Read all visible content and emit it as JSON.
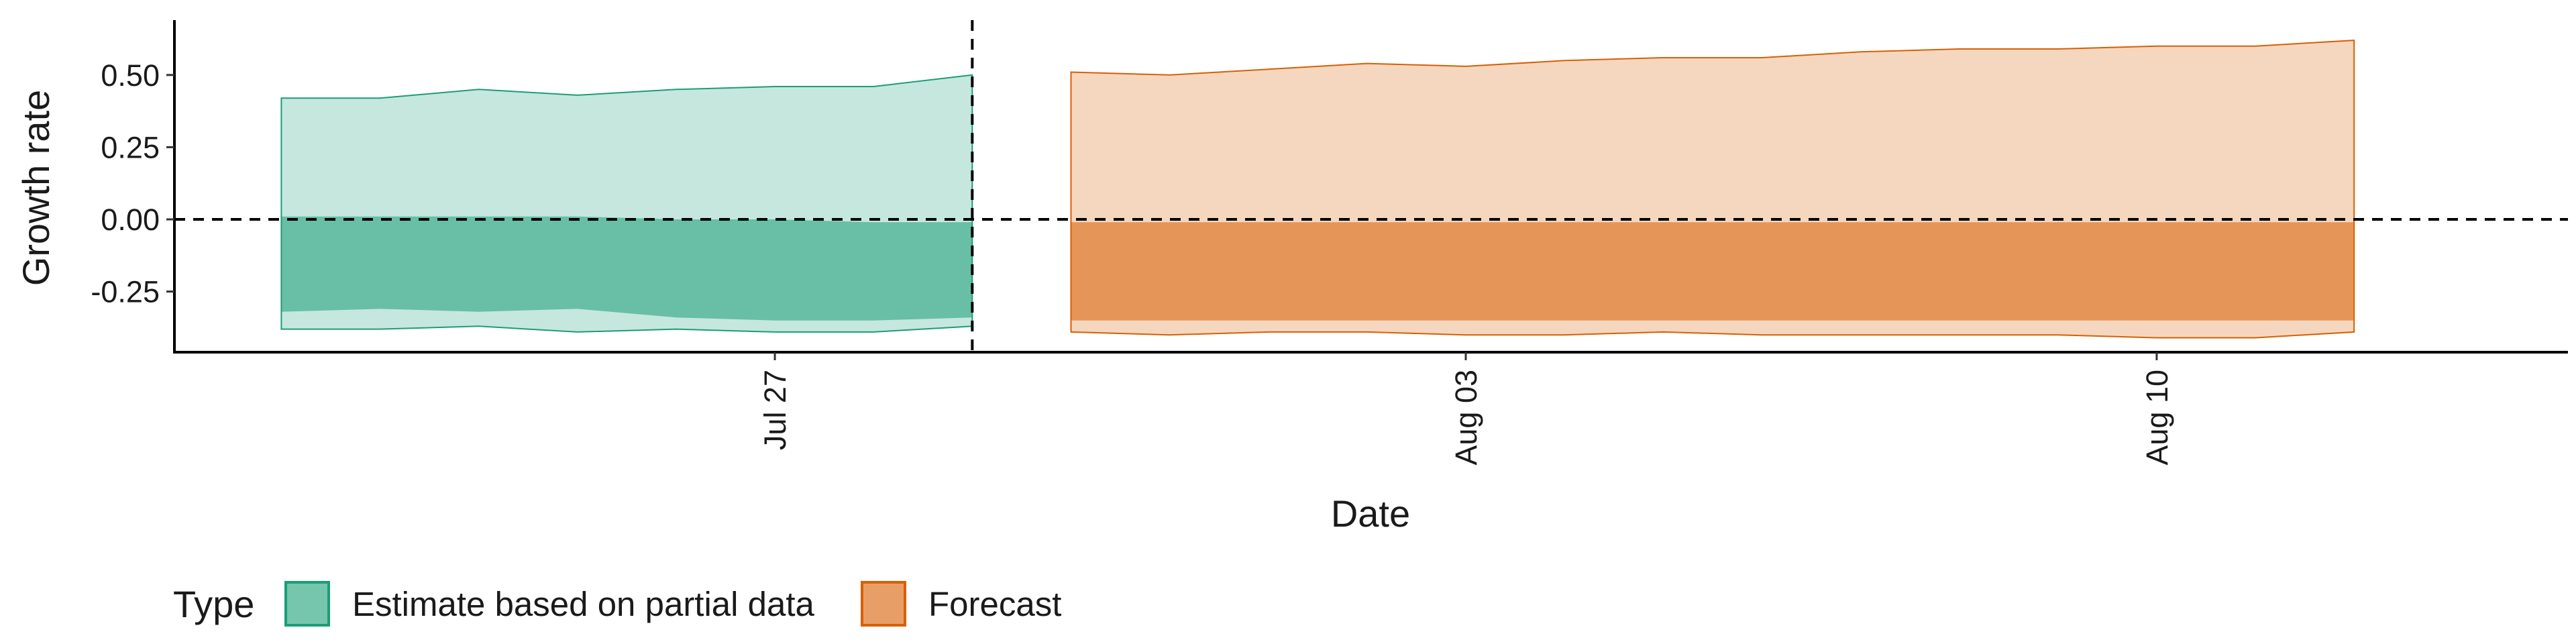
{
  "chart_data": {
    "type": "area",
    "xlabel": "Date",
    "ylabel": "Growth rate",
    "x_ticks": [
      {
        "date": "2020-07-27",
        "label": "Jul 27"
      },
      {
        "date": "2020-08-03",
        "label": "Aug 03"
      },
      {
        "date": "2020-08-10",
        "label": "Aug 10"
      }
    ],
    "y_ticks": [
      {
        "value": 0.5,
        "label": "0.50"
      },
      {
        "value": 0.25,
        "label": "0.25"
      },
      {
        "value": 0.0,
        "label": "0.00"
      },
      {
        "value": -0.25,
        "label": "-0.25"
      }
    ],
    "xlim": [
      "2020-07-20T22:00",
      "2020-08-14T04:00"
    ],
    "ylim": [
      -0.46,
      0.69
    ],
    "reference_lines": {
      "y": 0.0,
      "x": "2020-07-29"
    },
    "legend": {
      "title": "Type",
      "position": "bottom-left"
    },
    "series": [
      {
        "name": "Estimate based on partial data",
        "color": "#1b9e77",
        "x": [
          "2020-07-22",
          "2020-07-23",
          "2020-07-24",
          "2020-07-25",
          "2020-07-26",
          "2020-07-27",
          "2020-07-28",
          "2020-07-29"
        ],
        "upper_90": [
          0.42,
          0.42,
          0.45,
          0.43,
          0.45,
          0.46,
          0.46,
          0.5
        ],
        "upper_50": [
          0.01,
          0.01,
          0.01,
          0.01,
          0.0,
          0.0,
          -0.01,
          -0.01
        ],
        "lower_50": [
          -0.32,
          -0.31,
          -0.32,
          -0.31,
          -0.34,
          -0.35,
          -0.35,
          -0.34
        ],
        "lower_90": [
          -0.38,
          -0.38,
          -0.37,
          -0.39,
          -0.38,
          -0.39,
          -0.39,
          -0.37
        ]
      },
      {
        "name": "Forecast",
        "color": "#d95f02",
        "x": [
          "2020-07-30",
          "2020-07-31",
          "2020-08-01",
          "2020-08-02",
          "2020-08-03",
          "2020-08-04",
          "2020-08-05",
          "2020-08-06",
          "2020-08-07",
          "2020-08-08",
          "2020-08-09",
          "2020-08-10",
          "2020-08-11",
          "2020-08-12"
        ],
        "upper_90": [
          0.51,
          0.5,
          0.52,
          0.54,
          0.53,
          0.55,
          0.56,
          0.56,
          0.58,
          0.59,
          0.59,
          0.6,
          0.6,
          0.62
        ],
        "upper_50": [
          -0.01,
          -0.01,
          -0.01,
          -0.01,
          -0.01,
          -0.01,
          -0.01,
          -0.01,
          -0.01,
          -0.01,
          -0.01,
          -0.01,
          -0.01,
          -0.01
        ],
        "lower_50": [
          -0.35,
          -0.35,
          -0.35,
          -0.35,
          -0.35,
          -0.35,
          -0.35,
          -0.35,
          -0.35,
          -0.35,
          -0.35,
          -0.35,
          -0.35,
          -0.35
        ],
        "lower_90": [
          -0.39,
          -0.4,
          -0.39,
          -0.39,
          -0.4,
          -0.4,
          -0.39,
          -0.4,
          -0.4,
          -0.4,
          -0.4,
          -0.41,
          -0.41,
          -0.39
        ]
      }
    ]
  }
}
